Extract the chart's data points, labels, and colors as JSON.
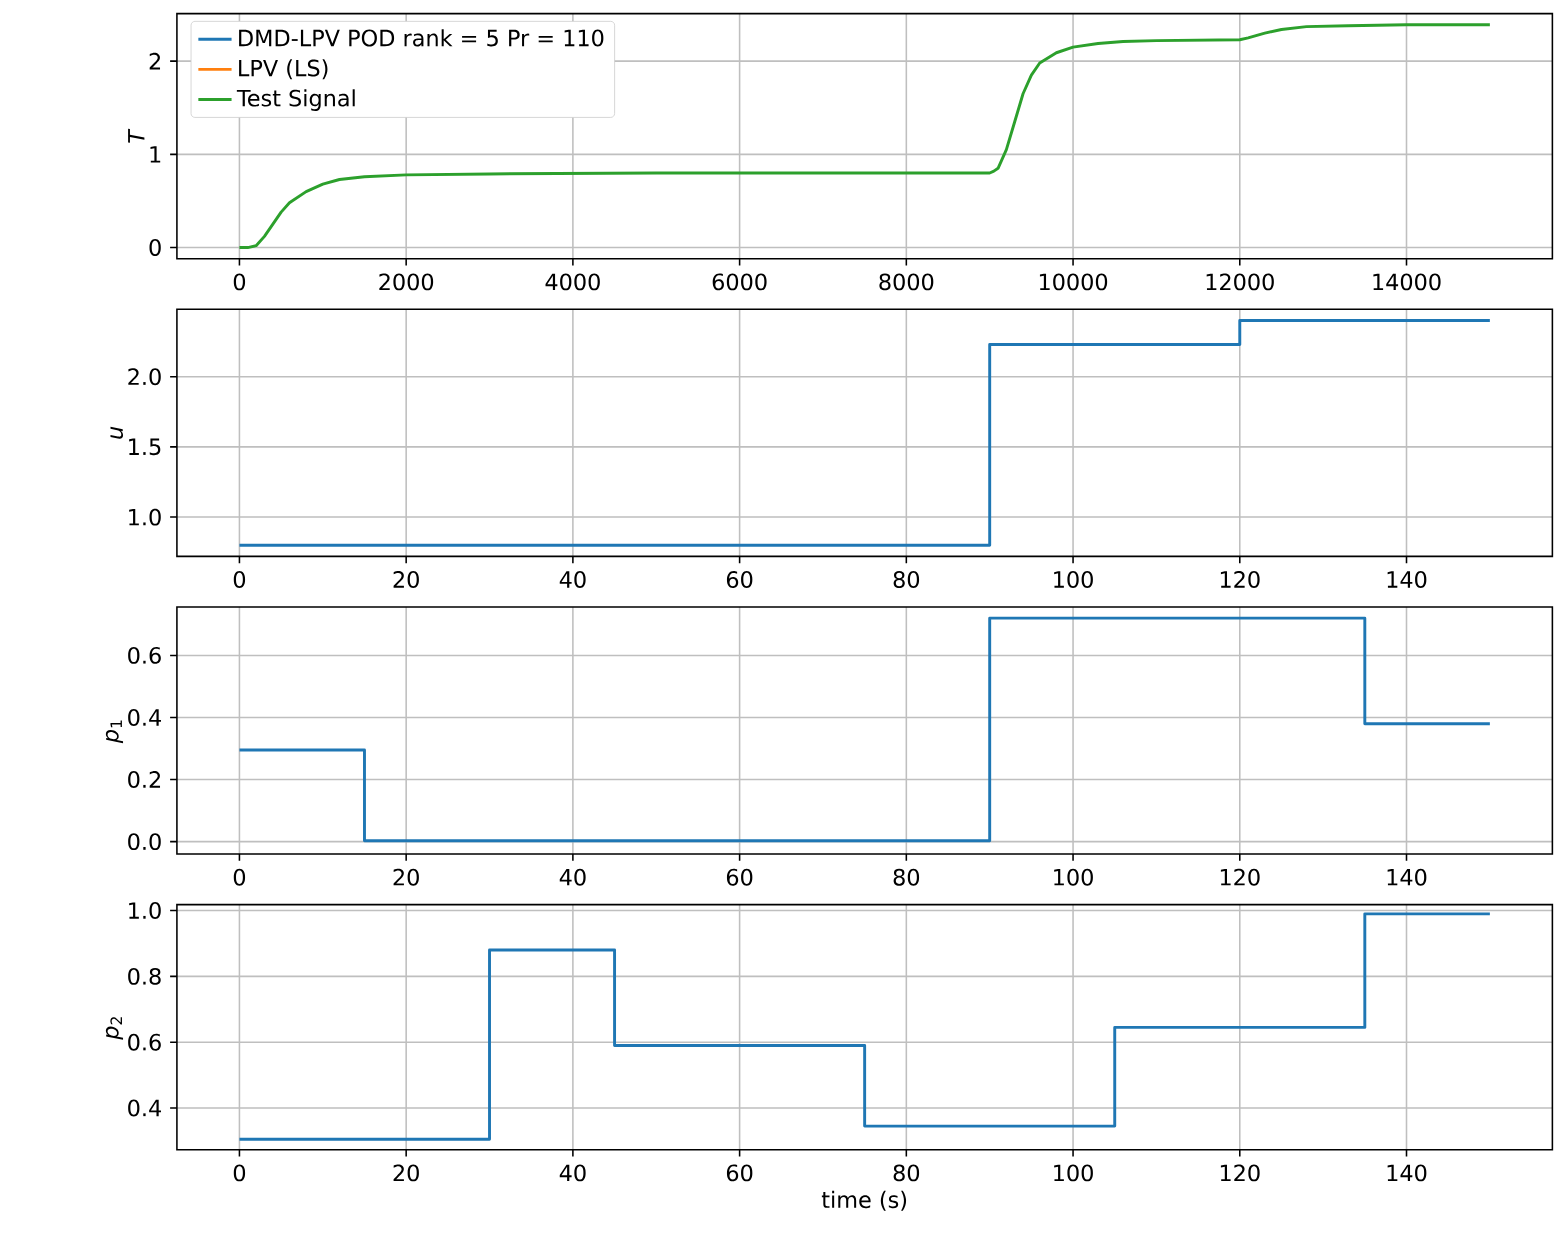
{
  "chart_data": [
    {
      "type": "line",
      "ylabel": "*T*",
      "xlim": [
        -750,
        15750
      ],
      "ylim": [
        -0.12,
        2.51
      ],
      "xticks": [
        0,
        2000,
        4000,
        6000,
        8000,
        10000,
        12000,
        14000
      ],
      "yticks": [
        0,
        1,
        2
      ],
      "grid": true,
      "legend": "top left",
      "x": [
        0,
        100,
        200,
        300,
        400,
        500,
        600,
        800,
        1000,
        1200,
        1500,
        2000,
        3000,
        5000,
        9000,
        9050,
        9100,
        9200,
        9300,
        9400,
        9500,
        9600,
        9800,
        10000,
        10300,
        10600,
        11000,
        12000,
        12100,
        12300,
        12500,
        12800,
        13300,
        14000,
        15000
      ],
      "series": [
        {
          "name": "DMD-LPV POD rank = 5 Pr = 110",
          "color": "#1f77b4",
          "values": [
            null,
            null,
            null,
            null,
            null,
            null,
            null,
            null,
            null,
            null,
            null,
            null,
            null,
            null,
            null,
            null,
            null,
            null,
            null,
            null,
            null,
            null,
            null,
            null,
            null,
            null,
            null,
            null,
            null,
            null,
            null,
            null,
            null,
            null,
            null
          ]
        },
        {
          "name": "LPV (LS)",
          "color": "#ff7f0e",
          "values": [
            null,
            null,
            null,
            null,
            null,
            null,
            null,
            null,
            null,
            null,
            null,
            null,
            null,
            null,
            null,
            null,
            null,
            null,
            null,
            null,
            null,
            null,
            null,
            null,
            null,
            null,
            null,
            null,
            null,
            null,
            null,
            null,
            null,
            null,
            null
          ]
        },
        {
          "name": "Test Signal",
          "color": "#2ca02c",
          "values": [
            0,
            0,
            0.02,
            0.12,
            0.25,
            0.38,
            0.48,
            0.6,
            0.68,
            0.73,
            0.76,
            0.78,
            0.79,
            0.8,
            0.8,
            0.82,
            0.85,
            1.05,
            1.35,
            1.65,
            1.85,
            1.98,
            2.09,
            2.15,
            2.19,
            2.21,
            2.22,
            2.23,
            2.25,
            2.3,
            2.34,
            2.37,
            2.38,
            2.39,
            2.39
          ]
        }
      ]
    },
    {
      "type": "step",
      "ylabel": "*u*",
      "xlim": [
        -7.5,
        157.5
      ],
      "ylim": [
        0.72,
        2.48
      ],
      "xticks": [
        0,
        20,
        40,
        60,
        80,
        100,
        120,
        140
      ],
      "yticks": [
        {
          "value": 1,
          "label": "1.0"
        },
        {
          "value": 1.5,
          "label": "1.5"
        },
        {
          "value": 2,
          "label": "2.0"
        }
      ],
      "grid": true,
      "x": [
        0,
        90,
        120,
        150
      ],
      "series": [
        {
          "color": "#1f77b4",
          "values": [
            0.8,
            2.23,
            2.4,
            2.4
          ]
        }
      ]
    },
    {
      "type": "step",
      "ylabel": "*p*$_{1}$",
      "xlim": [
        -7.5,
        157.5
      ],
      "ylim": [
        -0.04,
        0.756
      ],
      "xticks": [
        0,
        20,
        40,
        60,
        80,
        100,
        120,
        140
      ],
      "yticks": [
        {
          "value": 0,
          "label": "0.0"
        },
        {
          "value": 0.2,
          "label": "0.2"
        },
        {
          "value": 0.4,
          "label": "0.4"
        },
        {
          "value": 0.6,
          "label": "0.6"
        }
      ],
      "grid": true,
      "x": [
        0,
        15,
        90,
        135,
        150
      ],
      "series": [
        {
          "color": "#1f77b4",
          "values": [
            0.295,
            0.003,
            0.72,
            0.38,
            0.38
          ]
        }
      ]
    },
    {
      "type": "step",
      "ylabel": "*p*$_{2}$",
      "xlabel": "time (s)",
      "xlim": [
        -7.5,
        157.5
      ],
      "ylim": [
        0.273,
        1.018
      ],
      "xticks": [
        0,
        20,
        40,
        60,
        80,
        100,
        120,
        140
      ],
      "yticks": [
        {
          "value": 0.4,
          "label": "0.4"
        },
        {
          "value": 0.6,
          "label": "0.6"
        },
        {
          "value": 0.8,
          "label": "0.8"
        },
        {
          "value": 1,
          "label": "1.0"
        }
      ],
      "grid": true,
      "x": [
        0,
        30,
        45,
        75,
        105,
        135,
        150
      ],
      "series": [
        {
          "color": "#1f77b4",
          "values": [
            0.305,
            0.88,
            0.59,
            0.345,
            0.645,
            0.99,
            0.99
          ]
        }
      ]
    }
  ]
}
